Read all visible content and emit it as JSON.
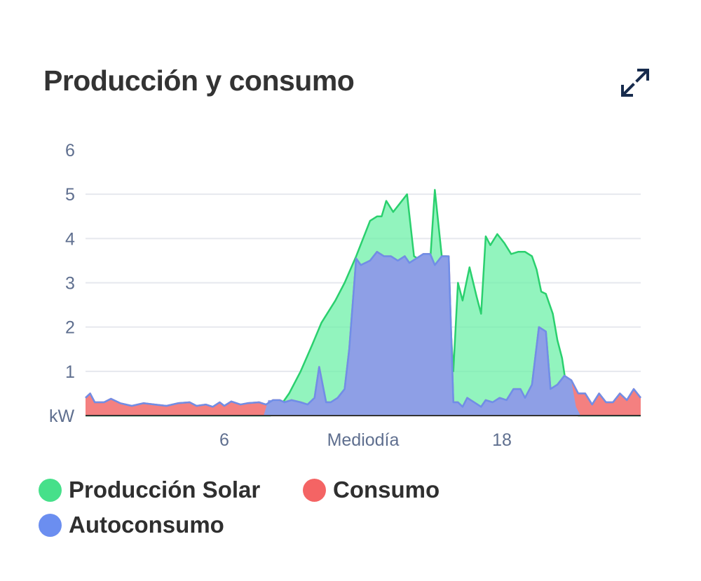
{
  "card": {
    "title": "Producción y consumo"
  },
  "icons": {
    "expand": "expand-arrows-icon"
  },
  "colors": {
    "solar_fill": "#6ef0a8",
    "solar_line": "#2ad06e",
    "consumo_fill": "#f26a6a",
    "consumo_line": "#f06262",
    "autoconsumo_fill": "#8e9fe6",
    "autoconsumo_line": "#6f8ee8",
    "grid": "#e6e8ee",
    "axis_text": "#5f6f8f"
  },
  "chart_data": {
    "type": "area",
    "title": "Producción y consumo",
    "ylabel": "kW",
    "ylim": [
      0,
      6
    ],
    "yticks": [
      "6",
      "5",
      "4",
      "3",
      "2",
      "1"
    ],
    "xlim": [
      0,
      24
    ],
    "xticks": [
      {
        "value": 6,
        "label": "6"
      },
      {
        "value": 12,
        "label": "Mediodía"
      },
      {
        "value": 18,
        "label": "18"
      }
    ],
    "legend_position": "bottom",
    "series": [
      {
        "name": "Producción Solar",
        "color": "#46e08a",
        "points": [
          [
            0,
            0
          ],
          [
            8,
            0
          ],
          [
            8.4,
            0.2
          ],
          [
            8.8,
            0.5
          ],
          [
            9.3,
            1.0
          ],
          [
            9.8,
            1.6
          ],
          [
            10.2,
            2.1
          ],
          [
            10.8,
            2.6
          ],
          [
            11.2,
            3.0
          ],
          [
            11.7,
            3.6
          ],
          [
            12,
            4.0
          ],
          [
            12.3,
            4.4
          ],
          [
            12.6,
            4.5
          ],
          [
            12.8,
            4.5
          ],
          [
            13,
            4.85
          ],
          [
            13.3,
            4.6
          ],
          [
            13.6,
            4.8
          ],
          [
            13.9,
            5.0
          ],
          [
            14.2,
            3.6
          ],
          [
            14.5,
            3.5
          ],
          [
            14.9,
            3.5
          ],
          [
            15.1,
            5.1
          ],
          [
            15.4,
            3.6
          ],
          [
            15.6,
            3.6
          ],
          [
            15.9,
            1.0
          ],
          [
            16.1,
            3.0
          ],
          [
            16.3,
            2.6
          ],
          [
            16.6,
            3.35
          ],
          [
            16.9,
            2.7
          ],
          [
            17.1,
            2.3
          ],
          [
            17.3,
            4.05
          ],
          [
            17.5,
            3.85
          ],
          [
            17.8,
            4.1
          ],
          [
            18.1,
            3.9
          ],
          [
            18.4,
            3.65
          ],
          [
            18.7,
            3.7
          ],
          [
            19,
            3.7
          ],
          [
            19.3,
            3.6
          ],
          [
            19.5,
            3.3
          ],
          [
            19.7,
            2.8
          ],
          [
            19.9,
            2.75
          ],
          [
            20.2,
            2.3
          ],
          [
            20.4,
            1.7
          ],
          [
            20.6,
            1.3
          ],
          [
            20.8,
            0.6
          ],
          [
            21,
            0.2
          ],
          [
            21.3,
            0
          ],
          [
            24,
            0
          ]
        ]
      },
      {
        "name": "Consumo",
        "color": "#f46464",
        "points": [
          [
            0,
            0.4
          ],
          [
            0.2,
            0.5
          ],
          [
            0.4,
            0.3
          ],
          [
            0.8,
            0.3
          ],
          [
            1.1,
            0.38
          ],
          [
            1.5,
            0.28
          ],
          [
            2,
            0.22
          ],
          [
            2.5,
            0.28
          ],
          [
            3,
            0.25
          ],
          [
            3.5,
            0.22
          ],
          [
            4,
            0.28
          ],
          [
            4.5,
            0.3
          ],
          [
            4.8,
            0.22
          ],
          [
            5.2,
            0.25
          ],
          [
            5.5,
            0.2
          ],
          [
            5.8,
            0.3
          ],
          [
            6,
            0.22
          ],
          [
            6.3,
            0.32
          ],
          [
            6.7,
            0.25
          ],
          [
            7,
            0.28
          ],
          [
            7.5,
            0.3
          ],
          [
            7.8,
            0.25
          ],
          [
            8.1,
            0.35
          ],
          [
            8.4,
            0.35
          ],
          [
            8.6,
            0.3
          ],
          [
            8.9,
            0.35
          ],
          [
            9.3,
            0.3
          ],
          [
            9.6,
            0.25
          ],
          [
            9.9,
            0.4
          ],
          [
            10.1,
            1.1
          ],
          [
            10.4,
            0.3
          ],
          [
            10.6,
            0.3
          ],
          [
            10.9,
            0.4
          ],
          [
            11.2,
            0.6
          ],
          [
            11.4,
            1.5
          ],
          [
            11.7,
            3.55
          ],
          [
            11.9,
            3.4
          ],
          [
            12.3,
            3.5
          ],
          [
            12.6,
            3.7
          ],
          [
            12.9,
            3.6
          ],
          [
            13.2,
            3.6
          ],
          [
            13.5,
            3.5
          ],
          [
            13.8,
            3.6
          ],
          [
            14,
            3.45
          ],
          [
            14.3,
            3.55
          ],
          [
            14.6,
            3.65
          ],
          [
            14.9,
            3.65
          ],
          [
            15.1,
            3.4
          ],
          [
            15.4,
            3.6
          ],
          [
            15.7,
            3.6
          ],
          [
            15.9,
            0.3
          ],
          [
            16.1,
            0.3
          ],
          [
            16.3,
            0.2
          ],
          [
            16.5,
            0.4
          ],
          [
            16.8,
            0.3
          ],
          [
            17.1,
            0.2
          ],
          [
            17.3,
            0.35
          ],
          [
            17.6,
            0.3
          ],
          [
            17.9,
            0.4
          ],
          [
            18.2,
            0.35
          ],
          [
            18.5,
            0.6
          ],
          [
            18.8,
            0.6
          ],
          [
            19,
            0.4
          ],
          [
            19.3,
            0.7
          ],
          [
            19.6,
            2.0
          ],
          [
            19.9,
            1.9
          ],
          [
            20.1,
            0.6
          ],
          [
            20.4,
            0.7
          ],
          [
            20.7,
            0.9
          ],
          [
            21,
            0.8
          ],
          [
            21.3,
            0.5
          ],
          [
            21.6,
            0.5
          ],
          [
            21.9,
            0.25
          ],
          [
            22.2,
            0.5
          ],
          [
            22.5,
            0.3
          ],
          [
            22.8,
            0.3
          ],
          [
            23.1,
            0.5
          ],
          [
            23.4,
            0.35
          ],
          [
            23.7,
            0.6
          ],
          [
            24,
            0.4
          ]
        ]
      },
      {
        "name": "Autoconsumo",
        "color": "#6b8ef0",
        "points": [
          [
            0,
            0
          ],
          [
            7.7,
            0
          ],
          [
            7.9,
            0.35
          ],
          [
            8.2,
            0.35
          ],
          [
            8.6,
            0.3
          ],
          [
            8.9,
            0.35
          ],
          [
            9.3,
            0.3
          ],
          [
            9.6,
            0.25
          ],
          [
            9.9,
            0.4
          ],
          [
            10.1,
            1.1
          ],
          [
            10.4,
            0.3
          ],
          [
            10.6,
            0.3
          ],
          [
            10.9,
            0.4
          ],
          [
            11.2,
            0.6
          ],
          [
            11.4,
            1.5
          ],
          [
            11.7,
            3.55
          ],
          [
            11.9,
            3.4
          ],
          [
            12.3,
            3.5
          ],
          [
            12.6,
            3.7
          ],
          [
            12.9,
            3.6
          ],
          [
            13.2,
            3.6
          ],
          [
            13.5,
            3.5
          ],
          [
            13.8,
            3.6
          ],
          [
            14,
            3.45
          ],
          [
            14.3,
            3.55
          ],
          [
            14.6,
            3.65
          ],
          [
            14.9,
            3.65
          ],
          [
            15.1,
            3.4
          ],
          [
            15.4,
            3.6
          ],
          [
            15.7,
            3.6
          ],
          [
            15.9,
            0.3
          ],
          [
            16.1,
            0.3
          ],
          [
            16.3,
            0.2
          ],
          [
            16.5,
            0.4
          ],
          [
            16.8,
            0.3
          ],
          [
            17.1,
            0.2
          ],
          [
            17.3,
            0.35
          ],
          [
            17.6,
            0.3
          ],
          [
            17.9,
            0.4
          ],
          [
            18.2,
            0.35
          ],
          [
            18.5,
            0.6
          ],
          [
            18.8,
            0.6
          ],
          [
            19,
            0.4
          ],
          [
            19.3,
            0.7
          ],
          [
            19.6,
            2.0
          ],
          [
            19.9,
            1.9
          ],
          [
            20.1,
            0.6
          ],
          [
            20.4,
            0.7
          ],
          [
            20.7,
            0.9
          ],
          [
            21,
            0.8
          ],
          [
            21.2,
            0.2
          ],
          [
            21.4,
            0
          ],
          [
            24,
            0
          ]
        ]
      }
    ]
  },
  "legend": {
    "items": [
      {
        "label": "Producción Solar",
        "color": "#46e08a"
      },
      {
        "label": "Consumo",
        "color": "#f46464"
      },
      {
        "label": "Autoconsumo",
        "color": "#6b8ef0"
      }
    ]
  }
}
